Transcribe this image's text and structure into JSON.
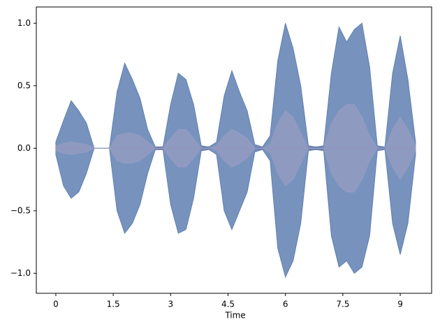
{
  "chart_data": {
    "type": "waveform",
    "xlabel": "Time",
    "x": [
      0,
      0.2,
      0.4,
      0.6,
      0.8,
      1.0,
      1.2,
      1.4,
      1.6,
      1.8,
      2.0,
      2.2,
      2.4,
      2.6,
      2.8,
      3.0,
      3.2,
      3.4,
      3.6,
      3.8,
      4.0,
      4.2,
      4.4,
      4.6,
      4.8,
      5.0,
      5.2,
      5.4,
      5.6,
      5.8,
      6.0,
      6.2,
      6.4,
      6.6,
      6.8,
      7.0,
      7.2,
      7.4,
      7.6,
      7.8,
      8.0,
      8.2,
      8.4,
      8.6,
      8.8,
      9.0,
      9.2,
      9.4
    ],
    "series": [
      {
        "color": "#e8909a",
        "upper": [
          0.01,
          0.01,
          0.01,
          0.01,
          0.01,
          0,
          0,
          0,
          0.01,
          0.01,
          0.01,
          0.01,
          0.01,
          0.012,
          0.012,
          0.01,
          0.01,
          0.01,
          0.01,
          0.012,
          0.012,
          0.01,
          0.01,
          0.01,
          0.01,
          0.01,
          0.012,
          0.012,
          0.01,
          0.01,
          0.01,
          0.01,
          0.01,
          0.012,
          0.012,
          0.012,
          0.01,
          0.01,
          0.01,
          0.01,
          0.01,
          0.01,
          0.005,
          0.005,
          0.01,
          0.01,
          0.01,
          0.01
        ],
        "lower": [
          -0.01,
          -0.01,
          -0.01,
          -0.01,
          -0.01,
          0,
          0,
          0,
          -0.01,
          -0.01,
          -0.01,
          -0.01,
          -0.01,
          -0.012,
          -0.012,
          -0.01,
          -0.01,
          -0.01,
          -0.01,
          -0.012,
          -0.012,
          -0.01,
          -0.01,
          -0.01,
          -0.01,
          -0.01,
          -0.012,
          -0.012,
          -0.01,
          -0.01,
          -0.01,
          -0.01,
          -0.01,
          -0.012,
          -0.012,
          -0.012,
          -0.01,
          -0.01,
          -0.01,
          -0.01,
          -0.01,
          -0.01,
          -0.005,
          -0.005,
          -0.01,
          -0.01,
          -0.01,
          -0.01
        ]
      },
      {
        "color": "#5f80b2",
        "upper": [
          0.05,
          0.22,
          0.38,
          0.3,
          0.2,
          0,
          0,
          0,
          0.45,
          0.68,
          0.55,
          0.4,
          0.15,
          0.01,
          0.01,
          0.35,
          0.6,
          0.55,
          0.35,
          0.02,
          0.01,
          0.05,
          0.42,
          0.62,
          0.45,
          0.3,
          0.03,
          0.01,
          0.1,
          0.7,
          1.0,
          0.8,
          0.5,
          0.02,
          0.01,
          0.02,
          0.6,
          0.97,
          0.85,
          0.95,
          1.0,
          0.65,
          0.02,
          0.01,
          0.6,
          0.9,
          0.55,
          0.05
        ],
        "lower": [
          -0.05,
          -0.3,
          -0.4,
          -0.35,
          -0.2,
          0,
          0,
          0,
          -0.5,
          -0.68,
          -0.6,
          -0.45,
          -0.2,
          -0.01,
          -0.01,
          -0.45,
          -0.68,
          -0.65,
          -0.4,
          -0.02,
          -0.01,
          -0.05,
          -0.5,
          -0.65,
          -0.5,
          -0.35,
          -0.03,
          -0.01,
          -0.1,
          -0.8,
          -1.03,
          -0.9,
          -0.6,
          -0.02,
          -0.01,
          -0.02,
          -0.7,
          -0.95,
          -0.9,
          -1.0,
          -0.95,
          -0.7,
          -0.02,
          -0.01,
          -0.6,
          -0.85,
          -0.6,
          -0.05
        ]
      },
      {
        "color": "#939bc2",
        "upper": [
          0.02,
          0.04,
          0.05,
          0.04,
          0.03,
          0,
          0,
          0,
          0.1,
          0.12,
          0.12,
          0.1,
          0.05,
          0,
          0,
          0.08,
          0.15,
          0.15,
          0.08,
          0,
          0,
          0.02,
          0.1,
          0.15,
          0.12,
          0.08,
          0,
          0,
          0.03,
          0.2,
          0.3,
          0.25,
          0.12,
          0,
          0,
          0,
          0.2,
          0.3,
          0.35,
          0.35,
          0.25,
          0.1,
          0,
          0,
          0.15,
          0.25,
          0.15,
          0.02
        ],
        "lower": [
          -0.02,
          -0.04,
          -0.05,
          -0.04,
          -0.03,
          0,
          0,
          0,
          -0.1,
          -0.12,
          -0.12,
          -0.1,
          -0.05,
          0,
          0,
          -0.08,
          -0.15,
          -0.15,
          -0.08,
          0,
          0,
          -0.02,
          -0.1,
          -0.15,
          -0.12,
          -0.08,
          0,
          0,
          -0.03,
          -0.2,
          -0.3,
          -0.25,
          -0.12,
          0,
          0,
          0,
          -0.2,
          -0.3,
          -0.35,
          -0.35,
          -0.25,
          -0.1,
          0,
          0,
          -0.15,
          -0.25,
          -0.15,
          -0.02
        ]
      }
    ],
    "xlim": [
      -0.51,
      9.82
    ],
    "ylim": [
      -1.16,
      1.13
    ],
    "xticks": [
      0,
      1.5,
      3,
      4.5,
      6,
      7.5,
      9
    ],
    "yticks": [
      {
        "value": -1,
        "label": "−1.0"
      },
      {
        "value": -0.5,
        "label": "−0.5"
      },
      {
        "value": 0,
        "label": "0.0"
      },
      0.5,
      {
        "value": 1,
        "label": "1.0"
      }
    ]
  }
}
